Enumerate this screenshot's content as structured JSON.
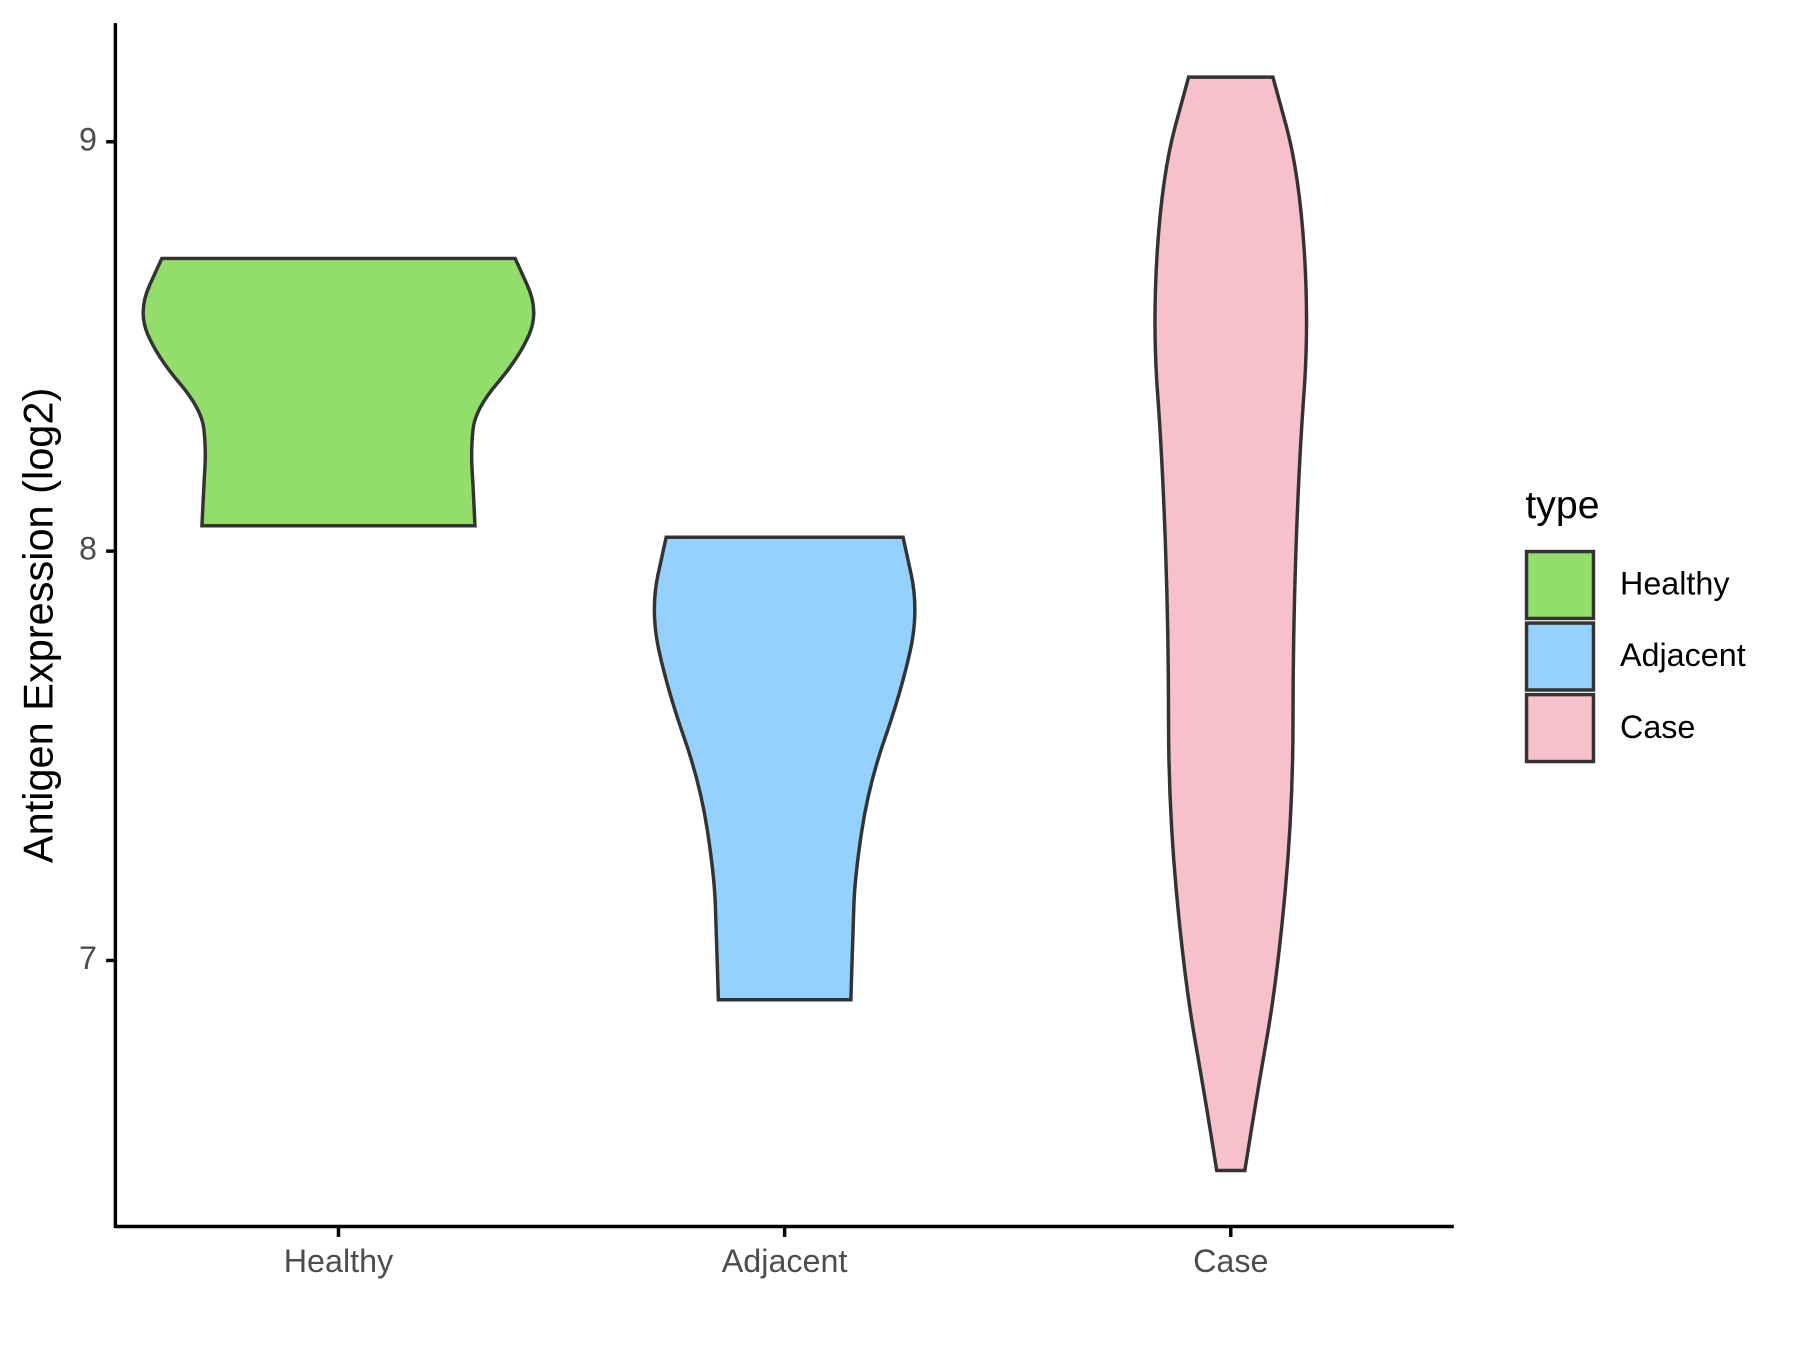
{
  "chart_data": {
    "type": "violin",
    "y_label": "Antigen Expression (log2)",
    "categories": [
      "Healthy",
      "Adjacent",
      "Case"
    ],
    "ylim": [
      6.35,
      9.29
    ],
    "yticks": [
      7,
      8,
      9
    ],
    "legend_title": "type",
    "legend_position": "right",
    "series": [
      {
        "name": "Healthy",
        "color": "#93dd6b",
        "y": [
          8.715,
          8.586,
          8.473,
          8.346,
          8.248,
          8.163,
          8.062
        ],
        "width": [
          0.88,
          1.0,
          0.9,
          0.68,
          0.66,
          0.67,
          0.68
        ]
      },
      {
        "name": "Adjacent",
        "color": "#94d2fd",
        "y": [
          8.034,
          7.854,
          7.656,
          7.431,
          7.206,
          7.065,
          6.904
        ],
        "width": [
          0.59,
          0.67,
          0.58,
          0.42,
          0.35,
          0.34,
          0.33
        ]
      },
      {
        "name": "Case",
        "color": "#f7c0cb",
        "y": [
          9.158,
          8.924,
          8.558,
          8.22,
          7.797,
          7.375,
          6.952,
          6.67,
          6.487
        ],
        "width": [
          0.21,
          0.34,
          0.39,
          0.34,
          0.31,
          0.31,
          0.23,
          0.13,
          0.07
        ]
      }
    ]
  }
}
